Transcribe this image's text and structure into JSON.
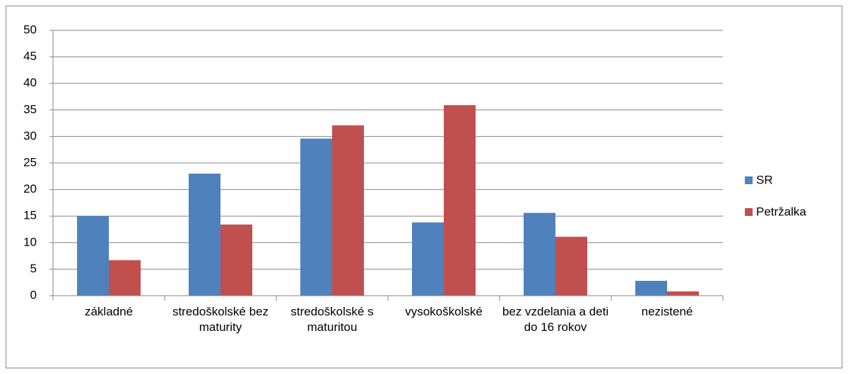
{
  "chart_data": {
    "type": "bar",
    "categories": [
      "základné",
      "stredoškolské bez maturity",
      "stredoškolské s maturitou",
      "vysokoškolské",
      "bez vzdelania a deti do 16 rokov",
      "nezistené"
    ],
    "series": [
      {
        "name": "SR",
        "color": "#4f81bd",
        "values": [
          15.0,
          23.0,
          29.6,
          13.8,
          15.6,
          2.8
        ]
      },
      {
        "name": "Petržalka",
        "color": "#c0504d",
        "values": [
          6.7,
          13.4,
          32.1,
          35.9,
          11.1,
          0.8
        ]
      }
    ],
    "ylim": [
      0,
      50
    ],
    "yticks": [
      0,
      5,
      10,
      15,
      20,
      25,
      30,
      35,
      40,
      45,
      50
    ],
    "grid": true,
    "legend": "right"
  }
}
